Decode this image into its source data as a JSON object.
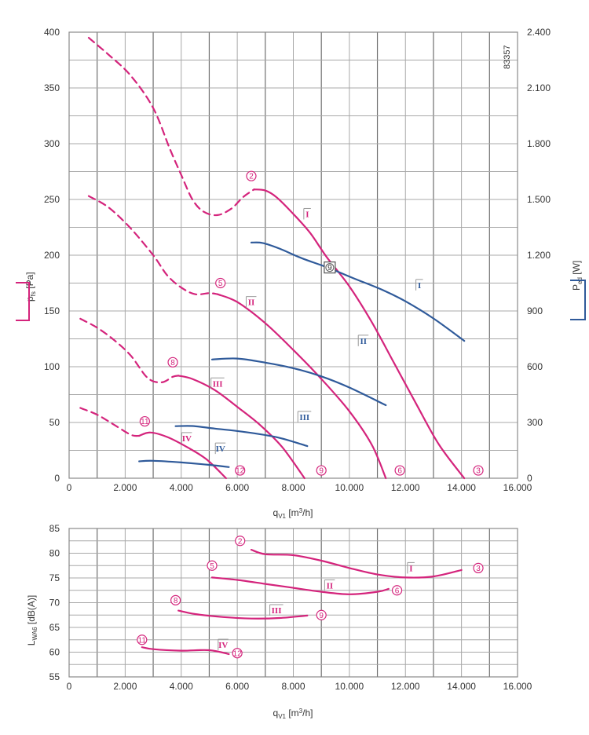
{
  "colors": {
    "pressure": "#d4247c",
    "power": "#2f5a9a",
    "grid": "#9a9a9a",
    "text": "#333333"
  },
  "figure_code": "83357",
  "chart_data": [
    {
      "type": "line",
      "panel": "performance",
      "ylabel": {
        "main": "p",
        "sub": "fs",
        "unit": " [Pa]"
      },
      "y2label": {
        "main": "P",
        "sub": "ed",
        "unit": " [W]"
      },
      "xlabel": {
        "main": "q",
        "sub": "V1",
        "unit": " [m",
        "sup": "3",
        "tail": "/h]"
      },
      "xlim": [
        0,
        16000
      ],
      "ylim": [
        0,
        400
      ],
      "y2lim": [
        0,
        2400
      ],
      "x_ticks": [
        {
          "v": 0,
          "label": "0"
        },
        {
          "v": 2000,
          "label": "2.000"
        },
        {
          "v": 4000,
          "label": "4.000"
        },
        {
          "v": 6000,
          "label": "6.000"
        },
        {
          "v": 8000,
          "label": "8.000"
        },
        {
          "v": 10000,
          "label": "10.000"
        },
        {
          "v": 12000,
          "label": "12.000"
        },
        {
          "v": 14000,
          "label": "14.000"
        },
        {
          "v": 16000,
          "label": "16.000"
        }
      ],
      "y_ticks": [
        {
          "v": 0,
          "label": "0"
        },
        {
          "v": 50,
          "label": "50"
        },
        {
          "v": 100,
          "label": "100"
        },
        {
          "v": 150,
          "label": "150"
        },
        {
          "v": 200,
          "label": "200"
        },
        {
          "v": 250,
          "label": "250"
        },
        {
          "v": 300,
          "label": "300"
        },
        {
          "v": 350,
          "label": "350"
        },
        {
          "v": 400,
          "label": "400"
        }
      ],
      "y2_ticks": [
        {
          "v": 0,
          "label": "0"
        },
        {
          "v": 300,
          "label": "300"
        },
        {
          "v": 600,
          "label": "600"
        },
        {
          "v": 900,
          "label": "900"
        },
        {
          "v": 1200,
          "label": "1.200"
        },
        {
          "v": 1500,
          "label": "1.500"
        },
        {
          "v": 1800,
          "label": "1.800"
        },
        {
          "v": 2100,
          "label": "2.100"
        },
        {
          "v": 2400,
          "label": "2.400"
        }
      ],
      "pressure_series": [
        {
          "level": "I",
          "dashed": [
            [
              700,
              395
            ],
            [
              1400,
              380
            ],
            [
              2200,
              361
            ],
            [
              3000,
              332
            ],
            [
              3600,
              295
            ],
            [
              4000,
              272
            ],
            [
              4400,
              250
            ],
            [
              4800,
              239
            ],
            [
              5300,
              236
            ],
            [
              5800,
              242
            ],
            [
              6200,
              252
            ],
            [
              6600,
              259
            ]
          ],
          "solid": [
            [
              6600,
              259
            ],
            [
              7000,
              258
            ],
            [
              7400,
              252
            ],
            [
              8000,
              237
            ],
            [
              8600,
              220
            ],
            [
              9200,
              198
            ],
            [
              10000,
              172
            ],
            [
              10800,
              140
            ],
            [
              11600,
              103
            ],
            [
              12400,
              66
            ],
            [
              13200,
              30
            ],
            [
              14100,
              0
            ]
          ]
        },
        {
          "level": "II",
          "dashed": [
            [
              700,
              253
            ],
            [
              1400,
              243
            ],
            [
              2200,
              224
            ],
            [
              3000,
              200
            ],
            [
              3500,
              182
            ],
            [
              4000,
              171
            ],
            [
              4500,
              165
            ],
            [
              5000,
              166
            ],
            [
              5300,
              165
            ]
          ],
          "solid": [
            [
              5300,
              165
            ],
            [
              6000,
              158
            ],
            [
              7000,
              139
            ],
            [
              8000,
              115
            ],
            [
              9000,
              89
            ],
            [
              10000,
              60
            ],
            [
              10800,
              30
            ],
            [
              11300,
              0
            ]
          ]
        },
        {
          "level": "III",
          "dashed": [
            [
              400,
              143
            ],
            [
              1000,
              135
            ],
            [
              1600,
              124
            ],
            [
              2200,
              110
            ],
            [
              2800,
              90
            ],
            [
              3300,
              86
            ],
            [
              3700,
              91
            ],
            [
              3900,
              92
            ]
          ],
          "solid": [
            [
              3900,
              92
            ],
            [
              4400,
              89
            ],
            [
              5200,
              79
            ],
            [
              6000,
              64
            ],
            [
              6800,
              48
            ],
            [
              7600,
              28
            ],
            [
              8400,
              0
            ]
          ]
        },
        {
          "level": "IV",
          "dashed": [
            [
              400,
              63
            ],
            [
              1000,
              57
            ],
            [
              1600,
              48
            ],
            [
              2200,
              39
            ],
            [
              2500,
              38
            ]
          ],
          "solid": [
            [
              2500,
              38
            ],
            [
              2900,
              41
            ],
            [
              3500,
              37
            ],
            [
              4200,
              28
            ],
            [
              4900,
              17
            ],
            [
              5600,
              0
            ]
          ]
        }
      ],
      "power_series": [
        {
          "level": "I",
          "points": [
            [
              6500,
              1268
            ],
            [
              6900,
              1266
            ],
            [
              7500,
              1236
            ],
            [
              8300,
              1184
            ],
            [
              9200,
              1135
            ],
            [
              10200,
              1073
            ],
            [
              11200,
              1012
            ],
            [
              12000,
              952
            ],
            [
              13000,
              860
            ],
            [
              14100,
              739
            ]
          ]
        },
        {
          "level": "II",
          "points": [
            [
              5100,
              639
            ],
            [
              6000,
              644
            ],
            [
              7000,
              622
            ],
            [
              8000,
              592
            ],
            [
              9000,
              548
            ],
            [
              10000,
              488
            ],
            [
              11300,
              393
            ]
          ]
        },
        {
          "level": "III",
          "points": [
            [
              3800,
              280
            ],
            [
              4400,
              281
            ],
            [
              5200,
              267
            ],
            [
              6200,
              250
            ],
            [
              7400,
              221
            ],
            [
              8500,
              173
            ]
          ]
        },
        {
          "level": "IV",
          "points": [
            [
              2500,
              91
            ],
            [
              3000,
              94
            ],
            [
              4000,
              85
            ],
            [
              5000,
              72
            ],
            [
              5700,
              60
            ]
          ]
        }
      ],
      "pressure_level_labels": [
        {
          "text": "I",
          "x": 8500,
          "y": 237
        },
        {
          "text": "II",
          "x": 6500,
          "y": 158
        },
        {
          "text": "III",
          "x": 5300,
          "y": 85
        },
        {
          "text": "IV",
          "x": 4200,
          "y": 36
        }
      ],
      "power_level_labels": [
        {
          "text": "I",
          "x": 12500,
          "y2": 1040
        },
        {
          "text": "II",
          "x": 10500,
          "y2": 740
        },
        {
          "text": "III",
          "x": 8400,
          "y2": 330
        },
        {
          "text": "IV",
          "x": 5400,
          "y2": 160
        }
      ],
      "point_markers": [
        {
          "text": "2",
          "x": 6500,
          "y": 271
        },
        {
          "text": "3",
          "x": 14600,
          "y": 7
        },
        {
          "text": "5",
          "x": 5400,
          "y": 175
        },
        {
          "text": "6",
          "x": 11800,
          "y": 7
        },
        {
          "text": "8",
          "x": 3700,
          "y": 104
        },
        {
          "text": "9",
          "x": 9000,
          "y": 7
        },
        {
          "text": "11",
          "x": 2700,
          "y": 51
        },
        {
          "text": "12",
          "x": 6100,
          "y": 7
        }
      ],
      "intersection_marker": {
        "text": "9",
        "x": 9300,
        "y": 189
      }
    },
    {
      "type": "line",
      "panel": "sound",
      "ylabel": {
        "main": "L",
        "sub": "WA6",
        "unit": " [dB(A)]"
      },
      "xlabel": {
        "main": "q",
        "sub": "V1",
        "unit": " [m",
        "sup": "3",
        "tail": "/h]"
      },
      "xlim": [
        0,
        16000
      ],
      "ylim": [
        55,
        85
      ],
      "x_ticks": [
        {
          "v": 0,
          "label": "0"
        },
        {
          "v": 2000,
          "label": "2.000"
        },
        {
          "v": 4000,
          "label": "4.000"
        },
        {
          "v": 6000,
          "label": "6.000"
        },
        {
          "v": 8000,
          "label": "8.000"
        },
        {
          "v": 10000,
          "label": "10.000"
        },
        {
          "v": 12000,
          "label": "12.000"
        },
        {
          "v": 14000,
          "label": "14.000"
        },
        {
          "v": 16000,
          "label": "16.000"
        }
      ],
      "y_ticks": [
        {
          "v": 55,
          "label": "55"
        },
        {
          "v": 60,
          "label": "60"
        },
        {
          "v": 65,
          "label": "65"
        },
        {
          "v": 70,
          "label": "70"
        },
        {
          "v": 75,
          "label": "75"
        },
        {
          "v": 80,
          "label": "80"
        },
        {
          "v": 85,
          "label": "85"
        }
      ],
      "series": [
        {
          "level": "I",
          "points": [
            [
              6500,
              80.7
            ],
            [
              7000,
              79.8
            ],
            [
              8000,
              79.6
            ],
            [
              9000,
              78.5
            ],
            [
              10000,
              77
            ],
            [
              11000,
              75.7
            ],
            [
              12000,
              75.1
            ],
            [
              13000,
              75.3
            ],
            [
              14000,
              76.6
            ]
          ]
        },
        {
          "level": "II",
          "points": [
            [
              5100,
              75.1
            ],
            [
              6000,
              74.6
            ],
            [
              7000,
              73.8
            ],
            [
              8000,
              73
            ],
            [
              9000,
              72.2
            ],
            [
              10000,
              71.7
            ],
            [
              11000,
              72.2
            ],
            [
              11400,
              72.8
            ]
          ]
        },
        {
          "level": "III",
          "points": [
            [
              3900,
              68.4
            ],
            [
              4500,
              67.7
            ],
            [
              5500,
              67.1
            ],
            [
              6500,
              66.8
            ],
            [
              7500,
              66.9
            ],
            [
              8500,
              67.4
            ]
          ]
        },
        {
          "level": "IV",
          "points": [
            [
              2600,
              61
            ],
            [
              3000,
              60.6
            ],
            [
              4000,
              60.3
            ],
            [
              5000,
              60.4
            ],
            [
              5700,
              59.6
            ]
          ]
        }
      ],
      "level_labels": [
        {
          "text": "I",
          "x": 12200,
          "y": 77
        },
        {
          "text": "II",
          "x": 9300,
          "y": 73.5
        },
        {
          "text": "III",
          "x": 7400,
          "y": 68.5
        },
        {
          "text": "IV",
          "x": 5500,
          "y": 61.5
        }
      ],
      "point_markers": [
        {
          "text": "2",
          "x": 6100,
          "y": 82.5
        },
        {
          "text": "3",
          "x": 14600,
          "y": 77
        },
        {
          "text": "5",
          "x": 5100,
          "y": 77.5
        },
        {
          "text": "6",
          "x": 11700,
          "y": 72.5
        },
        {
          "text": "8",
          "x": 3800,
          "y": 70.5
        },
        {
          "text": "9",
          "x": 9000,
          "y": 67.5
        },
        {
          "text": "11",
          "x": 2600,
          "y": 62.5
        },
        {
          "text": "12",
          "x": 6000,
          "y": 59.8
        }
      ]
    }
  ]
}
